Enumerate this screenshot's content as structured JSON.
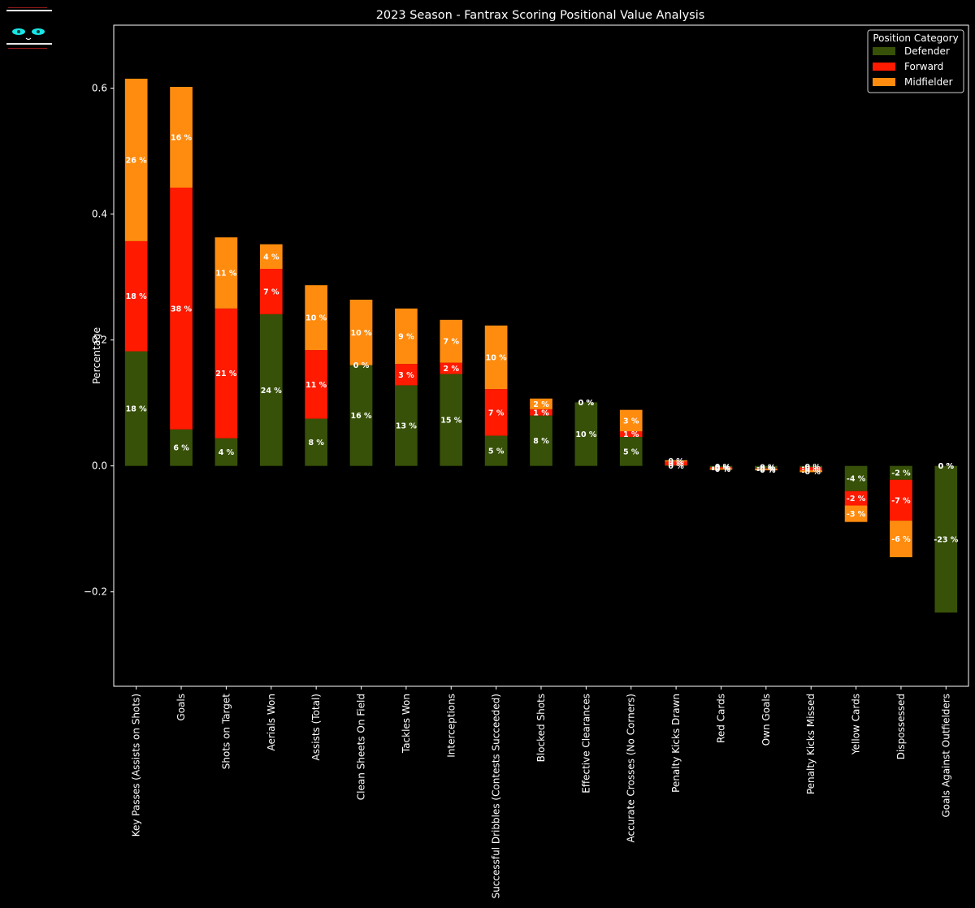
{
  "chart_data": {
    "type": "bar",
    "stacked": true,
    "title": "2023 Season - Fantrax Scoring Positional Value Analysis",
    "xlabel": "",
    "ylabel": "Percentage",
    "ylim": [
      -0.35,
      0.7
    ],
    "yticks": [
      -0.2,
      0.0,
      0.2,
      0.4,
      0.6
    ],
    "ytick_labels": [
      "−0.2",
      "0.0",
      "0.2",
      "0.4",
      "0.6"
    ],
    "grid": false,
    "legend": {
      "title": "Position Category",
      "placement": "top-right"
    },
    "categories": [
      "Key Passes (Assists on Shots)",
      "Goals",
      "Shots on Target",
      "Aerials Won",
      "Assists (Total)",
      "Clean Sheets On Field",
      "Tackles Won",
      "Interceptions",
      "Successful Dribbles (Contests Succeeded)",
      "Blocked Shots",
      "Effective Clearances",
      "Accurate Crosses (No Corners)",
      "Penalty Kicks Drawn",
      "Red Cards",
      "Own Goals",
      "Penalty Kicks Missed",
      "Yellow Cards",
      "Dispossessed",
      "Goals Against Outfielders"
    ],
    "series": [
      {
        "name": "Defender",
        "color": "#375108",
        "values": [
          0.182,
          0.058,
          0.044,
          0.241,
          0.075,
          0.16,
          0.128,
          0.146,
          0.048,
          0.08,
          0.101,
          0.046,
          0.001,
          -0.002,
          -0.004,
          -0.002,
          -0.04,
          -0.022,
          -0.233
        ],
        "labels": [
          "18 %",
          "6 %",
          "4 %",
          "24 %",
          "8 %",
          "16 %",
          "13 %",
          "15 %",
          "5 %",
          "8 %",
          "10 %",
          "5 %",
          "0 %",
          "-0 %",
          "-0 %",
          "-0 %",
          "-4 %",
          "-2 %",
          "-23 %"
        ]
      },
      {
        "name": "Forward",
        "color": "#ff1a00",
        "values": [
          0.175,
          0.384,
          0.206,
          0.072,
          0.109,
          0.0,
          0.034,
          0.018,
          0.074,
          0.01,
          0.0,
          0.009,
          0.006,
          -0.002,
          -0.001,
          -0.005,
          -0.023,
          -0.065,
          0.0
        ],
        "labels": [
          "18 %",
          "38 %",
          "21 %",
          "7 %",
          "11 %",
          "0 %",
          "3 %",
          "2 %",
          "7 %",
          "1 %",
          "0 %",
          "1 %",
          "0 %",
          "-0 %",
          "-0 %",
          "-0 %",
          "-2 %",
          "-7 %",
          "0 %"
        ]
      },
      {
        "name": "Midfielder",
        "color": "#ff8c0f",
        "values": [
          0.258,
          0.16,
          0.113,
          0.039,
          0.103,
          0.104,
          0.088,
          0.068,
          0.101,
          0.017,
          0.0,
          0.034,
          0.002,
          -0.002,
          -0.002,
          -0.003,
          -0.026,
          -0.058,
          0.0
        ],
        "labels": [
          "26 %",
          "16 %",
          "11 %",
          "4 %",
          "10 %",
          "10 %",
          "9 %",
          "7 %",
          "10 %",
          "2 %",
          "0 %",
          "3 %",
          "0 %",
          "-0 %",
          "-0 %",
          "-0 %",
          "-3 %",
          "-6 %",
          "0 %"
        ]
      }
    ]
  }
}
